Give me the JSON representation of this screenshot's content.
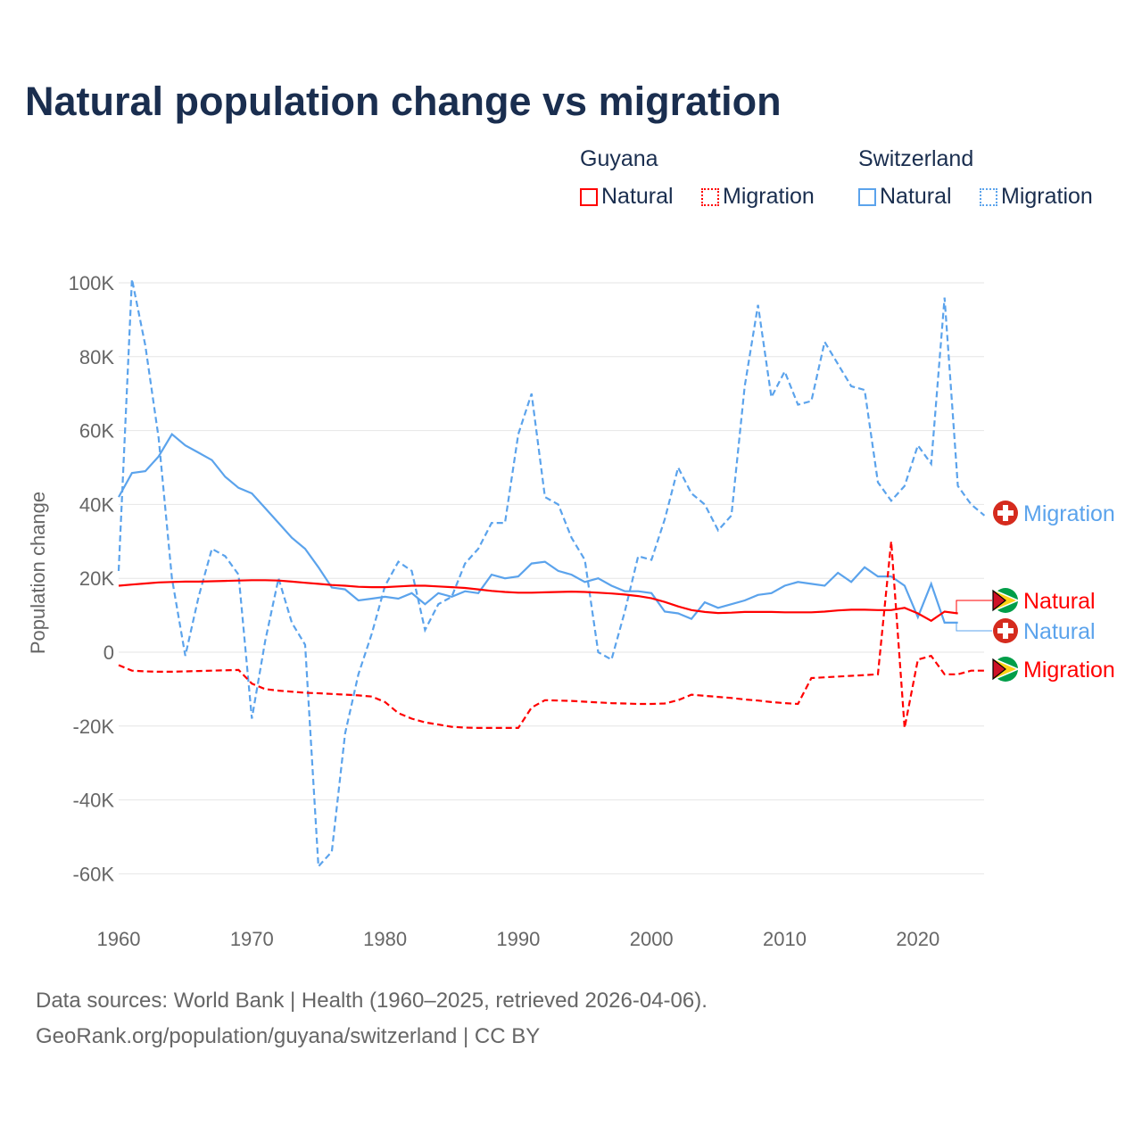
{
  "title": "Natural population change vs migration",
  "legend": {
    "groups": [
      {
        "name": "Guyana",
        "items": [
          "Natural",
          "Migration"
        ],
        "color": "#ff0000"
      },
      {
        "name": "Switzerland",
        "items": [
          "Natural",
          "Migration"
        ],
        "color": "#5ba3ec"
      }
    ]
  },
  "footer": {
    "line1": "Data sources: World Bank | Health (1960–2025, retrieved 2026-04-06).",
    "line2": "GeoRank.org/population/guyana/switzerland | CC BY"
  },
  "chart_data": {
    "type": "line",
    "title": "Natural population change vs migration",
    "ylabel": "Population change",
    "xlabel": "",
    "ylim": [
      -70000,
      105000
    ],
    "xlim": [
      1960,
      2025
    ],
    "yticks": [
      {
        "v": 100000,
        "label": "100K"
      },
      {
        "v": 80000,
        "label": "80K"
      },
      {
        "v": 60000,
        "label": "60K"
      },
      {
        "v": 40000,
        "label": "40K"
      },
      {
        "v": 20000,
        "label": "20K"
      },
      {
        "v": 0,
        "label": "0"
      },
      {
        "v": -20000,
        "label": "-20K"
      },
      {
        "v": -40000,
        "label": "-40K"
      },
      {
        "v": -60000,
        "label": "-60K"
      }
    ],
    "xticks": [
      1960,
      1970,
      1980,
      1990,
      2000,
      2010,
      2020
    ],
    "grid": true,
    "series": [
      {
        "name": "Switzerland Migration",
        "label": "Migration",
        "color": "#5ba3ec",
        "dash": true,
        "start": 1960,
        "values": [
          22,
          101,
          83,
          58,
          20,
          -1,
          15,
          28,
          26,
          21,
          -18,
          3,
          20,
          8,
          2,
          -58,
          -54,
          -22,
          -6,
          5,
          18,
          24.5,
          22,
          6,
          13,
          15,
          24,
          28,
          35,
          35,
          59,
          70,
          42,
          40,
          31,
          25,
          0,
          -2,
          11,
          26,
          25,
          36,
          50,
          43,
          40,
          33,
          37,
          72,
          94,
          69,
          76,
          67,
          68,
          84,
          78,
          72,
          71,
          46,
          41,
          45,
          56,
          51,
          96,
          45,
          40,
          37
        ]
      },
      {
        "name": "Switzerland Natural",
        "label": "Natural",
        "color": "#5ba3ec",
        "dash": false,
        "start": 1960,
        "values": [
          42,
          48.5,
          49,
          53,
          59,
          56,
          54,
          52,
          47.5,
          44.5,
          43,
          39,
          35,
          31,
          28,
          23,
          17.5,
          17,
          14,
          14.5,
          15,
          14.5,
          16,
          13,
          16,
          15,
          16.5,
          16,
          21,
          20,
          20.5,
          24,
          24.5,
          22,
          21,
          19,
          20,
          18,
          16.5,
          16.5,
          16,
          11,
          10.5,
          9,
          13.5,
          12,
          13,
          14,
          15.5,
          16,
          18,
          19,
          18.5,
          18,
          21.5,
          19,
          23,
          20.5,
          20.5,
          18,
          9.5,
          18.5,
          8,
          8
        ]
      },
      {
        "name": "Guyana Natural",
        "label": "Natural",
        "color": "#ff0000",
        "dash": false,
        "start": 1960,
        "values": [
          18,
          18.3,
          18.6,
          18.9,
          19,
          19.1,
          19.1,
          19.2,
          19.3,
          19.4,
          19.5,
          19.5,
          19.4,
          19.1,
          18.8,
          18.5,
          18.2,
          18,
          17.7,
          17.6,
          17.6,
          17.8,
          18,
          18,
          17.8,
          17.6,
          17.4,
          17,
          16.6,
          16.3,
          16.1,
          16.1,
          16.2,
          16.3,
          16.4,
          16.3,
          16.1,
          15.9,
          15.6,
          15.2,
          14.6,
          13.6,
          12.4,
          11.4,
          10.9,
          10.6,
          10.7,
          10.9,
          10.9,
          10.9,
          10.8,
          10.8,
          10.8,
          11,
          11.3,
          11.5,
          11.5,
          11.4,
          11.4,
          12,
          10.5,
          8.5,
          11,
          10.5
        ]
      },
      {
        "name": "Guyana Migration",
        "label": "Migration",
        "color": "#ff0000",
        "dash": true,
        "start": 1960,
        "values": [
          -3.5,
          -5,
          -5.2,
          -5.3,
          -5.3,
          -5.2,
          -5.1,
          -5,
          -4.9,
          -4.8,
          -8.5,
          -10,
          -10.4,
          -10.7,
          -11,
          -11.1,
          -11.3,
          -11.5,
          -11.7,
          -12,
          -13.5,
          -16.5,
          -18,
          -19,
          -19.6,
          -20.2,
          -20.4,
          -20.5,
          -20.5,
          -20.5,
          -20.5,
          -15,
          -13,
          -13.1,
          -13.2,
          -13.4,
          -13.6,
          -13.8,
          -13.9,
          -14,
          -14,
          -13.9,
          -13,
          -11.5,
          -11.8,
          -12.1,
          -12.4,
          -12.8,
          -13.1,
          -13.5,
          -13.8,
          -14,
          -7,
          -6.8,
          -6.6,
          -6.4,
          -6.2,
          -6,
          30,
          -20.5,
          -2,
          -1,
          -6,
          -6,
          -5,
          -5
        ]
      }
    ]
  }
}
